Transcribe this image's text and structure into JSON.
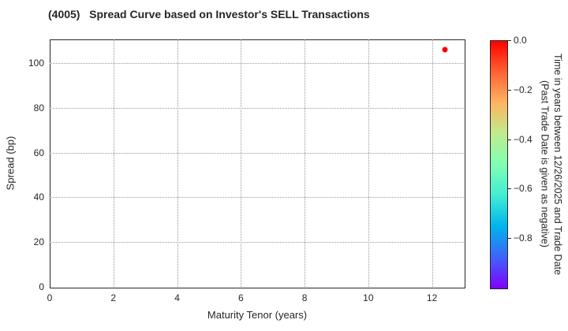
{
  "title": "(4005)   Spread Curve based on Investor's SELL Transactions",
  "chart_data": {
    "type": "scatter",
    "title": "(4005)   Spread Curve based on Investor's SELL Transactions",
    "xlabel": "Maturity Tenor (years)",
    "ylabel": "Spread (bp)",
    "xlim": [
      0,
      13.0
    ],
    "ylim": [
      0,
      110.6
    ],
    "x_ticks": [
      0,
      2,
      4,
      6,
      8,
      10,
      12
    ],
    "y_ticks": [
      0,
      20,
      40,
      60,
      80,
      100
    ],
    "grid": true,
    "grid_style": "dotted",
    "legend": "none",
    "points": [
      {
        "x": 12.4,
        "y": 106,
        "color_value": 0.0,
        "color": "#ff0000"
      }
    ],
    "colorbar": {
      "label_line1": "Time in years between 12/26/2025 and Trade Date",
      "label_line2": "(Past Trade Date is given as negative)",
      "tick_labels": [
        "0.0",
        "−0.2",
        "−0.4",
        "−0.6",
        "−0.8"
      ],
      "tick_values": [
        0,
        -0.2,
        -0.4,
        -0.6,
        -0.8
      ],
      "vmax": 0.0,
      "vmin": -1.0,
      "colormap": "rainbow",
      "gradient_stops": [
        {
          "pos": 0,
          "color": "rgb(255,0,0)"
        },
        {
          "pos": 12.5,
          "color": "rgb(255,98,50)"
        },
        {
          "pos": 25,
          "color": "rgb(255,180,98)"
        },
        {
          "pos": 37.5,
          "color": "rgb(191,236,142)"
        },
        {
          "pos": 50,
          "color": "rgb(128,255,180)"
        },
        {
          "pos": 62.5,
          "color": "rgb(64,236,212)"
        },
        {
          "pos": 75,
          "color": "rgb(0,180,236)"
        },
        {
          "pos": 87.5,
          "color": "rgb(64,98,250)"
        },
        {
          "pos": 100,
          "color": "rgb(128,0,255)"
        }
      ]
    }
  }
}
